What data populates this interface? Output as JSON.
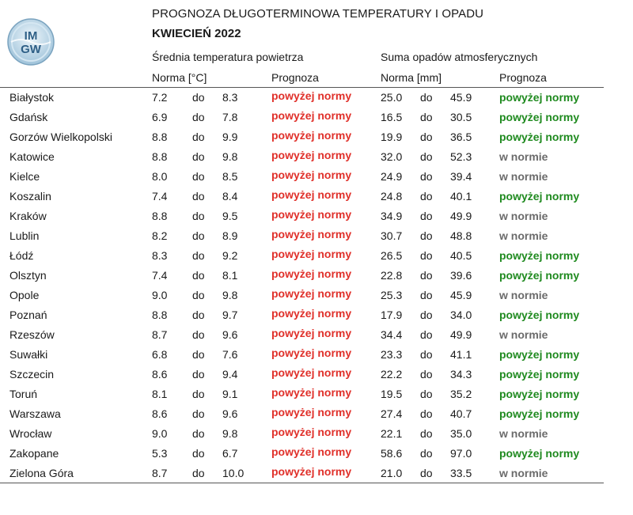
{
  "header": {
    "logo_text_top": "IM",
    "logo_text_bottom": "GW",
    "title": "PROGNOZA DŁUGOTERMINOWA TEMPERATURY I OPADU",
    "subtitle": "KWIECIEŃ 2022"
  },
  "groups": {
    "temperature": "Średnia temperatura powietrza",
    "precipitation": "Suma opadów atmosferycznych"
  },
  "columns": {
    "temp_norm": "Norma [°C]",
    "temp_forecast": "Prognoza",
    "prec_norm": "Norma [mm]",
    "prec_forecast": "Prognoza"
  },
  "colors": {
    "above_temperature": "#e0302a",
    "above_precipitation": "#1f8a1f",
    "normal": "#6b6b6b"
  },
  "rows": [
    {
      "city": "Białystok",
      "t_min": "7.2",
      "t_sep": "do",
      "t_max": "8.3",
      "t_fc": "powyżej normy",
      "p_min": "25.0",
      "p_sep": "do",
      "p_max": "45.9",
      "p_fc": "powyżej normy"
    },
    {
      "city": "Gdańsk",
      "t_min": "6.9",
      "t_sep": "do",
      "t_max": "7.8",
      "t_fc": "powyżej normy",
      "p_min": "16.5",
      "p_sep": "do",
      "p_max": "30.5",
      "p_fc": "powyżej normy"
    },
    {
      "city": "Gorzów Wielkopolski",
      "t_min": "8.8",
      "t_sep": "do",
      "t_max": "9.9",
      "t_fc": "powyżej normy",
      "p_min": "19.9",
      "p_sep": "do",
      "p_max": "36.5",
      "p_fc": "powyżej normy"
    },
    {
      "city": "Katowice",
      "t_min": "8.8",
      "t_sep": "do",
      "t_max": "9.8",
      "t_fc": "powyżej normy",
      "p_min": "32.0",
      "p_sep": "do",
      "p_max": "52.3",
      "p_fc": "w normie"
    },
    {
      "city": "Kielce",
      "t_min": "8.0",
      "t_sep": "do",
      "t_max": "8.5",
      "t_fc": "powyżej normy",
      "p_min": "24.9",
      "p_sep": "do",
      "p_max": "39.4",
      "p_fc": "w normie"
    },
    {
      "city": "Koszalin",
      "t_min": "7.4",
      "t_sep": "do",
      "t_max": "8.4",
      "t_fc": "powyżej normy",
      "p_min": "24.8",
      "p_sep": "do",
      "p_max": "40.1",
      "p_fc": "powyżej normy"
    },
    {
      "city": "Kraków",
      "t_min": "8.8",
      "t_sep": "do",
      "t_max": "9.5",
      "t_fc": "powyżej normy",
      "p_min": "34.9",
      "p_sep": "do",
      "p_max": "49.9",
      "p_fc": "w normie"
    },
    {
      "city": "Lublin",
      "t_min": "8.2",
      "t_sep": "do",
      "t_max": "8.9",
      "t_fc": "powyżej normy",
      "p_min": "30.7",
      "p_sep": "do",
      "p_max": "48.8",
      "p_fc": "w normie"
    },
    {
      "city": "Łódź",
      "t_min": "8.3",
      "t_sep": "do",
      "t_max": "9.2",
      "t_fc": "powyżej normy",
      "p_min": "26.5",
      "p_sep": "do",
      "p_max": "40.5",
      "p_fc": "powyżej normy"
    },
    {
      "city": "Olsztyn",
      "t_min": "7.4",
      "t_sep": "do",
      "t_max": "8.1",
      "t_fc": "powyżej normy",
      "p_min": "22.8",
      "p_sep": "do",
      "p_max": "39.6",
      "p_fc": "powyżej normy"
    },
    {
      "city": "Opole",
      "t_min": "9.0",
      "t_sep": "do",
      "t_max": "9.8",
      "t_fc": "powyżej normy",
      "p_min": "25.3",
      "p_sep": "do",
      "p_max": "45.9",
      "p_fc": "w normie"
    },
    {
      "city": "Poznań",
      "t_min": "8.8",
      "t_sep": "do",
      "t_max": "9.7",
      "t_fc": "powyżej normy",
      "p_min": "17.9",
      "p_sep": "do",
      "p_max": "34.0",
      "p_fc": "powyżej normy"
    },
    {
      "city": "Rzeszów",
      "t_min": "8.7",
      "t_sep": "do",
      "t_max": "9.6",
      "t_fc": "powyżej normy",
      "p_min": "34.4",
      "p_sep": "do",
      "p_max": "49.9",
      "p_fc": "w normie"
    },
    {
      "city": "Suwałki",
      "t_min": "6.8",
      "t_sep": "do",
      "t_max": "7.6",
      "t_fc": "powyżej normy",
      "p_min": "23.3",
      "p_sep": "do",
      "p_max": "41.1",
      "p_fc": "powyżej normy"
    },
    {
      "city": "Szczecin",
      "t_min": "8.6",
      "t_sep": "do",
      "t_max": "9.4",
      "t_fc": "powyżej normy",
      "p_min": "22.2",
      "p_sep": "do",
      "p_max": "34.3",
      "p_fc": "powyżej normy"
    },
    {
      "city": "Toruń",
      "t_min": "8.1",
      "t_sep": "do",
      "t_max": "9.1",
      "t_fc": "powyżej normy",
      "p_min": "19.5",
      "p_sep": "do",
      "p_max": "35.2",
      "p_fc": "powyżej normy"
    },
    {
      "city": "Warszawa",
      "t_min": "8.6",
      "t_sep": "do",
      "t_max": "9.6",
      "t_fc": "powyżej normy",
      "p_min": "27.4",
      "p_sep": "do",
      "p_max": "40.7",
      "p_fc": "powyżej normy"
    },
    {
      "city": "Wrocław",
      "t_min": "9.0",
      "t_sep": "do",
      "t_max": "9.8",
      "t_fc": "powyżej normy",
      "p_min": "22.1",
      "p_sep": "do",
      "p_max": "35.0",
      "p_fc": "w normie"
    },
    {
      "city": "Zakopane",
      "t_min": "5.3",
      "t_sep": "do",
      "t_max": "6.7",
      "t_fc": "powyżej normy",
      "p_min": "58.6",
      "p_sep": "do",
      "p_max": "97.0",
      "p_fc": "powyżej normy"
    },
    {
      "city": "Zielona Góra",
      "t_min": "8.7",
      "t_sep": "do",
      "t_max": "10.0",
      "t_fc": "powyżej normy",
      "p_min": "21.0",
      "p_sep": "do",
      "p_max": "33.5",
      "p_fc": "w normie"
    }
  ]
}
